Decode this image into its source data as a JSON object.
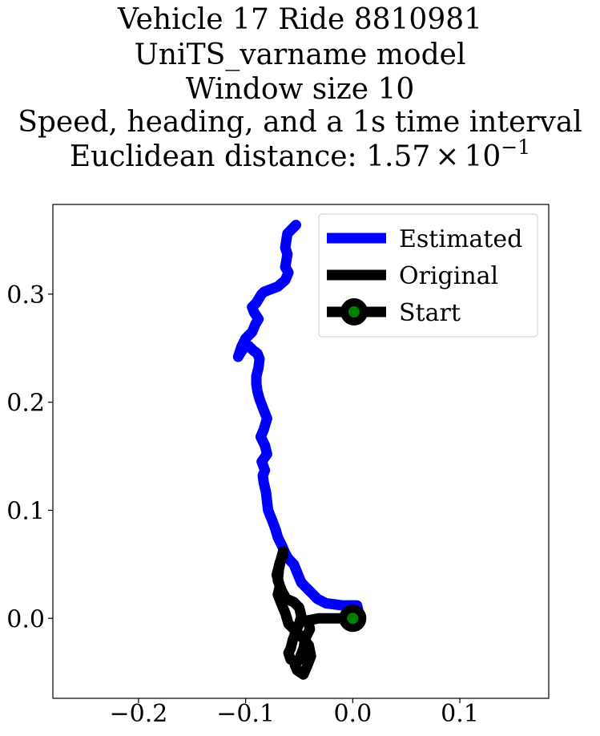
{
  "chart_data": {
    "type": "line",
    "title_lines": [
      "Vehicle 17 Ride 8810981",
      "UniTS_varname model",
      "Window size 10",
      "Speed, heading, and a 1s time interval"
    ],
    "title_metric": {
      "prefix": "Euclidean distance: ",
      "mantissa": "1.57",
      "times": "×",
      "base": "10",
      "exponent": "−1"
    },
    "xlim": [
      -0.28,
      0.183
    ],
    "ylim": [
      -0.074,
      0.383
    ],
    "xticks": [
      -0.2,
      -0.1,
      0.0,
      0.1
    ],
    "xtick_labels": [
      "−0.2",
      "−0.1",
      "0.0",
      "0.1"
    ],
    "yticks": [
      0.0,
      0.1,
      0.2,
      0.3
    ],
    "ytick_labels": [
      "0.0",
      "0.1",
      "0.2",
      "0.3"
    ],
    "legend_position": "upper right",
    "grid": false,
    "series": [
      {
        "name": "Estimated",
        "color": "#0000ff",
        "x": [
          0.0,
          0.005,
          0.004,
          -0.01,
          -0.025,
          -0.033,
          -0.04,
          -0.048,
          -0.051,
          -0.053,
          -0.055,
          -0.06,
          -0.063,
          -0.066,
          -0.07,
          -0.072,
          -0.075,
          -0.079,
          -0.08,
          -0.081,
          -0.083,
          -0.084,
          -0.082,
          -0.085,
          -0.08,
          -0.082,
          -0.086,
          -0.083,
          -0.08,
          -0.084,
          -0.087,
          -0.089,
          -0.09,
          -0.09,
          -0.088,
          -0.087,
          -0.089,
          -0.093,
          -0.097,
          -0.1,
          -0.104,
          -0.107,
          -0.104,
          -0.1,
          -0.094,
          -0.091,
          -0.088,
          -0.092,
          -0.094,
          -0.09,
          -0.087,
          -0.085,
          -0.083,
          -0.078,
          -0.07,
          -0.063,
          -0.06,
          -0.063,
          -0.062,
          -0.061,
          -0.063,
          -0.062,
          -0.061,
          -0.057,
          -0.053
        ],
        "y": [
          0.0,
          0.008,
          0.012,
          0.012,
          0.014,
          0.018,
          0.025,
          0.033,
          0.04,
          0.045,
          0.05,
          0.055,
          0.06,
          0.067,
          0.075,
          0.082,
          0.09,
          0.1,
          0.108,
          0.117,
          0.125,
          0.132,
          0.137,
          0.145,
          0.152,
          0.16,
          0.168,
          0.175,
          0.185,
          0.195,
          0.203,
          0.21,
          0.217,
          0.224,
          0.232,
          0.24,
          0.245,
          0.248,
          0.252,
          0.252,
          0.247,
          0.242,
          0.251,
          0.259,
          0.265,
          0.272,
          0.277,
          0.283,
          0.288,
          0.292,
          0.297,
          0.3,
          0.302,
          0.304,
          0.307,
          0.313,
          0.32,
          0.325,
          0.331,
          0.337,
          0.343,
          0.35,
          0.356,
          0.36,
          0.364
        ]
      },
      {
        "name": "Original",
        "color": "#000000",
        "x": [
          0.0,
          -0.032,
          -0.042,
          -0.04,
          -0.044,
          -0.046,
          -0.05,
          -0.054,
          -0.052,
          -0.046,
          -0.043,
          -0.039,
          -0.041,
          -0.045,
          -0.05,
          -0.057,
          -0.06,
          -0.063,
          -0.066,
          -0.07,
          -0.068,
          -0.071,
          -0.068,
          -0.065,
          -0.065,
          -0.067,
          -0.069,
          -0.07,
          -0.066,
          -0.062,
          -0.055,
          -0.05,
          -0.048,
          -0.05,
          -0.053,
          -0.056,
          -0.058,
          -0.06,
          -0.058
        ],
        "y": [
          0.0,
          0.0,
          -0.002,
          -0.01,
          -0.018,
          -0.028,
          -0.038,
          -0.043,
          -0.048,
          -0.052,
          -0.045,
          -0.035,
          -0.025,
          -0.02,
          -0.015,
          -0.008,
          -0.005,
          0.005,
          0.012,
          0.022,
          0.03,
          0.04,
          0.052,
          0.058,
          0.062,
          0.055,
          0.045,
          0.035,
          0.025,
          0.018,
          0.015,
          0.01,
          0.002,
          -0.005,
          -0.012,
          -0.02,
          -0.028,
          -0.032,
          -0.038
        ]
      },
      {
        "name": "Start",
        "color": "#000000",
        "marker_face": "#008000",
        "x": [
          0.0
        ],
        "y": [
          0.0
        ]
      }
    ]
  }
}
